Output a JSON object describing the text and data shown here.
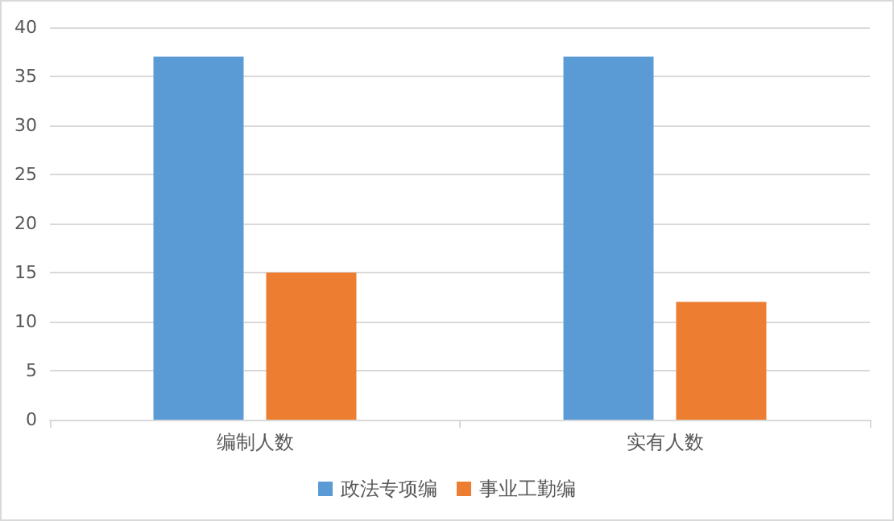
{
  "chart_data": {
    "type": "bar",
    "categories": [
      "编制人数",
      "实有人数"
    ],
    "series": [
      {
        "name": "政法专项编",
        "color": "#5b9bd5",
        "values": [
          37,
          37
        ]
      },
      {
        "name": "事业工勤编",
        "color": "#ed7d31",
        "values": [
          15,
          12
        ]
      }
    ],
    "ylim": [
      0,
      40
    ],
    "yticks": [
      0,
      5,
      10,
      15,
      20,
      25,
      30,
      35,
      40
    ],
    "grid": "y",
    "legend": "bottom"
  }
}
